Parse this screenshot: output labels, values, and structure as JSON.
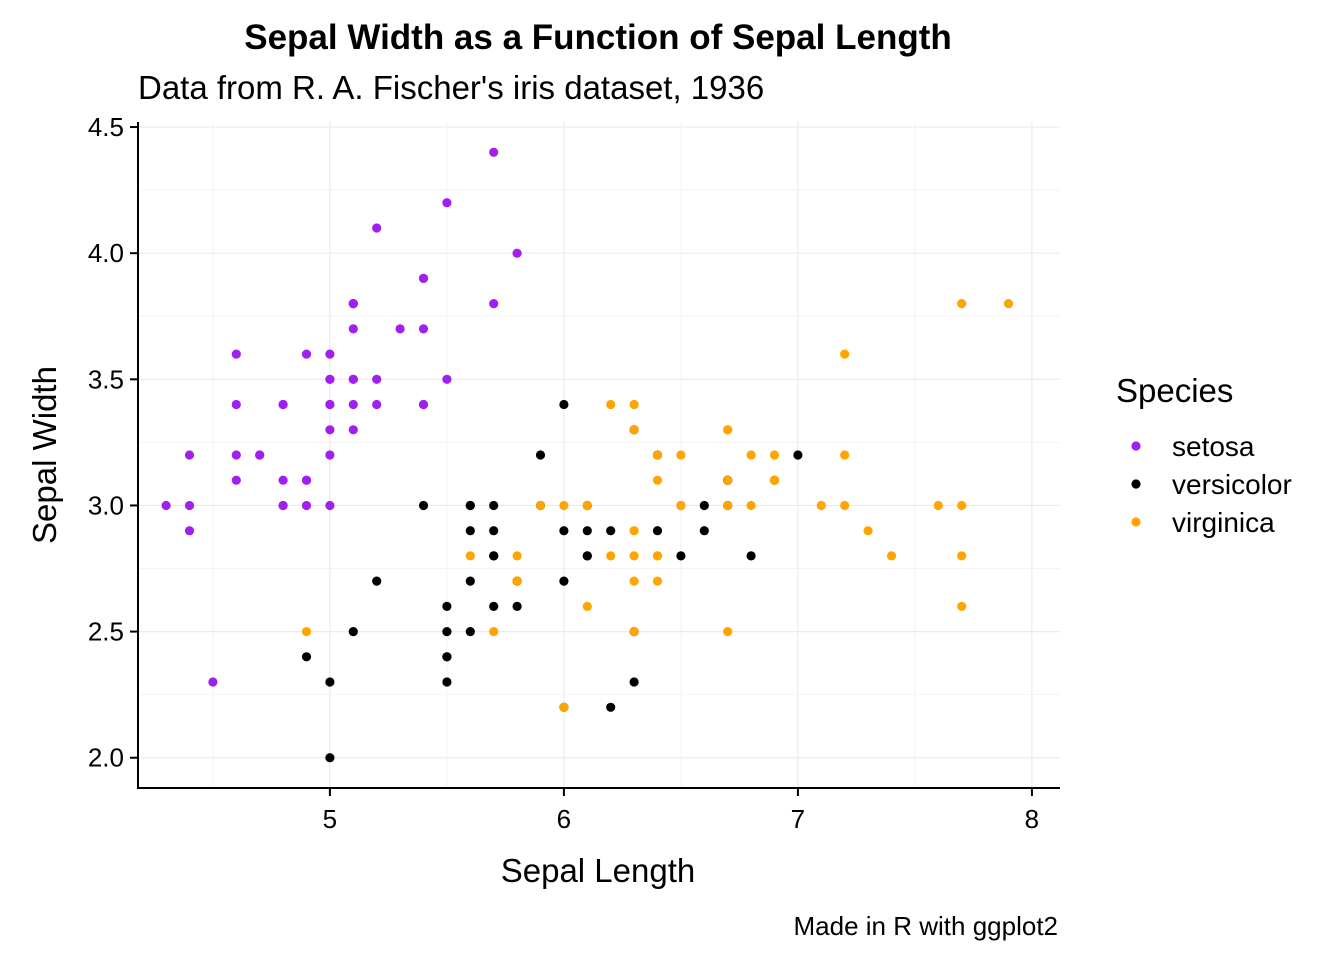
{
  "chart_data": {
    "type": "scatter",
    "title": "Sepal Width as a Function of Sepal Length",
    "subtitle": "Data from R. A. Fischer's iris dataset, 1936",
    "xlabel": "Sepal Length",
    "ylabel": "Sepal Width",
    "caption": "Made in R with ggplot2",
    "xlim": [
      4.18,
      8.12
    ],
    "ylim": [
      1.88,
      4.52
    ],
    "x_ticks": [
      5,
      6,
      7,
      8
    ],
    "x_tick_labels": [
      "5",
      "6",
      "7",
      "8"
    ],
    "y_ticks": [
      2.0,
      2.5,
      3.0,
      3.5,
      4.0,
      4.5
    ],
    "y_tick_labels": [
      "2.0",
      "2.5",
      "3.0",
      "3.5",
      "4.0",
      "4.5"
    ],
    "grid": true,
    "legend": {
      "title": "Species",
      "position": "right"
    },
    "series": [
      {
        "name": "setosa",
        "color": "#a020f0",
        "points": [
          [
            5.1,
            3.5
          ],
          [
            4.9,
            3.0
          ],
          [
            4.7,
            3.2
          ],
          [
            4.6,
            3.1
          ],
          [
            5.0,
            3.6
          ],
          [
            5.4,
            3.9
          ],
          [
            4.6,
            3.4
          ],
          [
            5.0,
            3.4
          ],
          [
            4.4,
            2.9
          ],
          [
            4.9,
            3.1
          ],
          [
            5.4,
            3.7
          ],
          [
            4.8,
            3.4
          ],
          [
            4.8,
            3.0
          ],
          [
            4.3,
            3.0
          ],
          [
            5.8,
            4.0
          ],
          [
            5.7,
            4.4
          ],
          [
            5.4,
            3.9
          ],
          [
            5.1,
            3.5
          ],
          [
            5.7,
            3.8
          ],
          [
            5.1,
            3.8
          ],
          [
            5.4,
            3.4
          ],
          [
            5.1,
            3.7
          ],
          [
            4.6,
            3.6
          ],
          [
            5.1,
            3.3
          ],
          [
            4.8,
            3.4
          ],
          [
            5.0,
            3.0
          ],
          [
            5.0,
            3.4
          ],
          [
            5.2,
            3.5
          ],
          [
            5.2,
            3.4
          ],
          [
            4.7,
            3.2
          ],
          [
            4.8,
            3.1
          ],
          [
            5.4,
            3.4
          ],
          [
            5.2,
            4.1
          ],
          [
            5.5,
            4.2
          ],
          [
            4.9,
            3.1
          ],
          [
            5.0,
            3.2
          ],
          [
            5.5,
            3.5
          ],
          [
            4.9,
            3.6
          ],
          [
            4.4,
            3.0
          ],
          [
            5.1,
            3.4
          ],
          [
            5.0,
            3.5
          ],
          [
            4.5,
            2.3
          ],
          [
            4.4,
            3.2
          ],
          [
            5.0,
            3.5
          ],
          [
            5.1,
            3.8
          ],
          [
            4.8,
            3.0
          ],
          [
            5.1,
            3.8
          ],
          [
            4.6,
            3.2
          ],
          [
            5.3,
            3.7
          ],
          [
            5.0,
            3.3
          ]
        ]
      },
      {
        "name": "versicolor",
        "color": "#000000",
        "points": [
          [
            7.0,
            3.2
          ],
          [
            6.4,
            3.2
          ],
          [
            6.9,
            3.1
          ],
          [
            5.5,
            2.3
          ],
          [
            6.5,
            2.8
          ],
          [
            5.7,
            2.8
          ],
          [
            6.3,
            3.3
          ],
          [
            4.9,
            2.4
          ],
          [
            6.6,
            2.9
          ],
          [
            5.2,
            2.7
          ],
          [
            5.0,
            2.0
          ],
          [
            5.9,
            3.0
          ],
          [
            6.0,
            2.2
          ],
          [
            6.1,
            2.9
          ],
          [
            5.6,
            2.9
          ],
          [
            6.7,
            3.1
          ],
          [
            5.6,
            3.0
          ],
          [
            5.8,
            2.7
          ],
          [
            6.2,
            2.2
          ],
          [
            5.6,
            2.5
          ],
          [
            5.9,
            3.2
          ],
          [
            6.1,
            2.8
          ],
          [
            6.3,
            2.5
          ],
          [
            6.1,
            2.8
          ],
          [
            6.4,
            2.9
          ],
          [
            6.6,
            3.0
          ],
          [
            6.8,
            2.8
          ],
          [
            6.7,
            3.0
          ],
          [
            6.0,
            2.9
          ],
          [
            5.7,
            2.6
          ],
          [
            5.5,
            2.4
          ],
          [
            5.5,
            2.4
          ],
          [
            5.8,
            2.7
          ],
          [
            6.0,
            2.7
          ],
          [
            5.4,
            3.0
          ],
          [
            6.0,
            3.4
          ],
          [
            6.7,
            3.1
          ],
          [
            6.3,
            2.3
          ],
          [
            5.6,
            3.0
          ],
          [
            5.5,
            2.5
          ],
          [
            5.5,
            2.6
          ],
          [
            6.1,
            3.0
          ],
          [
            5.8,
            2.6
          ],
          [
            5.0,
            2.3
          ],
          [
            5.6,
            2.7
          ],
          [
            5.7,
            3.0
          ],
          [
            5.7,
            2.9
          ],
          [
            6.2,
            2.9
          ],
          [
            5.1,
            2.5
          ],
          [
            5.7,
            2.8
          ]
        ]
      },
      {
        "name": "virginica",
        "color": "#ffa500",
        "points": [
          [
            6.3,
            3.3
          ],
          [
            5.8,
            2.7
          ],
          [
            7.1,
            3.0
          ],
          [
            6.3,
            2.9
          ],
          [
            6.5,
            3.0
          ],
          [
            7.6,
            3.0
          ],
          [
            4.9,
            2.5
          ],
          [
            7.3,
            2.9
          ],
          [
            6.7,
            2.5
          ],
          [
            7.2,
            3.6
          ],
          [
            6.5,
            3.2
          ],
          [
            6.4,
            2.7
          ],
          [
            6.8,
            3.0
          ],
          [
            5.7,
            2.5
          ],
          [
            5.8,
            2.8
          ],
          [
            6.4,
            3.2
          ],
          [
            6.5,
            3.0
          ],
          [
            7.7,
            3.8
          ],
          [
            7.7,
            2.6
          ],
          [
            6.0,
            2.2
          ],
          [
            6.9,
            3.2
          ],
          [
            5.6,
            2.8
          ],
          [
            7.7,
            2.8
          ],
          [
            6.3,
            2.7
          ],
          [
            6.7,
            3.3
          ],
          [
            7.2,
            3.2
          ],
          [
            6.2,
            2.8
          ],
          [
            6.1,
            3.0
          ],
          [
            6.4,
            2.8
          ],
          [
            7.2,
            3.0
          ],
          [
            7.4,
            2.8
          ],
          [
            7.9,
            3.8
          ],
          [
            6.4,
            2.8
          ],
          [
            6.3,
            2.8
          ],
          [
            6.1,
            2.6
          ],
          [
            7.7,
            3.0
          ],
          [
            6.3,
            3.4
          ],
          [
            6.4,
            3.1
          ],
          [
            6.0,
            3.0
          ],
          [
            6.9,
            3.1
          ],
          [
            6.7,
            3.1
          ],
          [
            6.9,
            3.1
          ],
          [
            5.8,
            2.7
          ],
          [
            6.8,
            3.2
          ],
          [
            6.7,
            3.3
          ],
          [
            6.7,
            3.0
          ],
          [
            6.3,
            2.5
          ],
          [
            6.5,
            3.0
          ],
          [
            6.2,
            3.4
          ],
          [
            5.9,
            3.0
          ]
        ]
      }
    ]
  }
}
